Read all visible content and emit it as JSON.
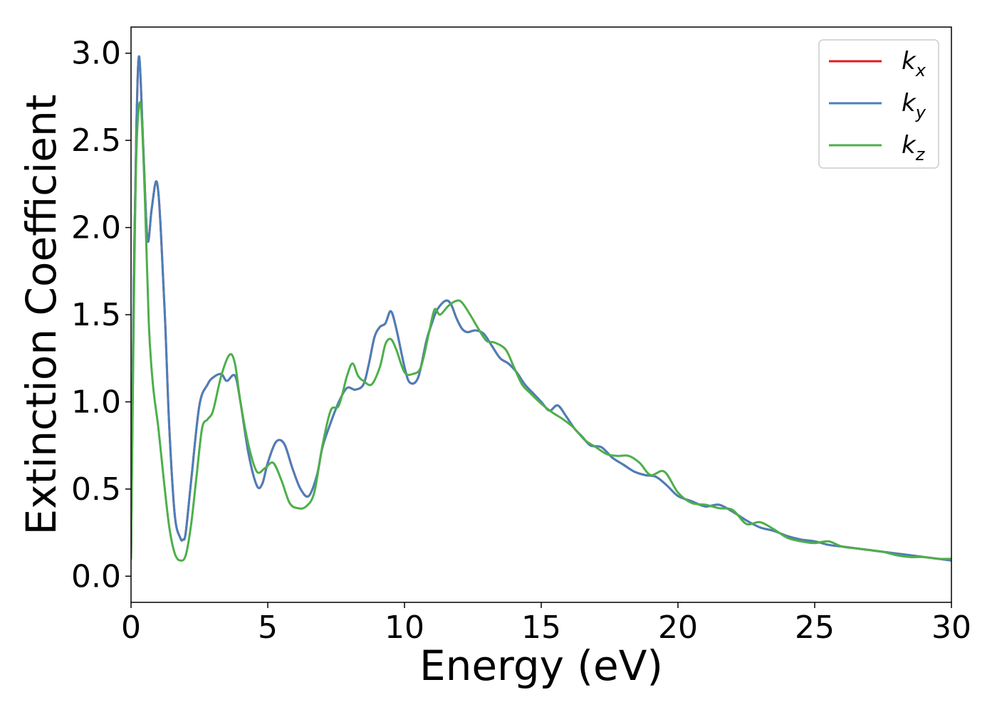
{
  "chart_data": {
    "type": "line",
    "title": "",
    "xlabel": "Energy (eV)",
    "ylabel": "Extinction Coefficient",
    "xlim": [
      0,
      30
    ],
    "ylim": [
      -0.15,
      3.15
    ],
    "xticks": [
      0,
      5,
      10,
      15,
      20,
      25,
      30
    ],
    "xtick_labels": [
      "0",
      "5",
      "10",
      "15",
      "20",
      "25",
      "30"
    ],
    "yticks": [
      0.0,
      0.5,
      1.0,
      1.5,
      2.0,
      2.5,
      3.0
    ],
    "ytick_labels": [
      "0.0",
      "0.5",
      "1.0",
      "1.5",
      "2.0",
      "2.5",
      "3.0"
    ],
    "grid": false,
    "legend_position": "top-right",
    "series": [
      {
        "name": "k_x",
        "label_base": "k",
        "label_sub": "x",
        "color": "#e41a1c",
        "x": [
          0,
          0.1,
          0.2,
          0.3,
          0.45,
          0.6,
          0.75,
          0.9,
          1.0,
          1.1,
          1.25,
          1.4,
          1.6,
          1.8,
          1.9,
          2.0,
          2.2,
          2.5,
          2.8,
          3.0,
          3.3,
          3.5,
          3.8,
          4.0,
          4.3,
          4.6,
          4.8,
          5.0,
          5.3,
          5.6,
          5.9,
          6.2,
          6.5,
          6.8,
          7.0,
          7.3,
          7.6,
          7.9,
          8.2,
          8.5,
          8.7,
          8.9,
          9.1,
          9.3,
          9.5,
          9.7,
          10.0,
          10.2,
          10.5,
          10.8,
          11.0,
          11.2,
          11.5,
          11.7,
          11.9,
          12.1,
          12.3,
          12.6,
          12.9,
          13.2,
          13.5,
          13.8,
          14.1,
          14.4,
          14.7,
          15.0,
          15.3,
          15.6,
          15.9,
          16.2,
          16.5,
          16.8,
          17.2,
          17.6,
          18.0,
          18.4,
          18.8,
          19.2,
          19.6,
          20.0,
          20.5,
          21.0,
          21.5,
          22.0,
          22.5,
          23.0,
          23.5,
          24.0,
          24.5,
          25.0,
          25.5,
          26.0,
          26.5,
          27.0,
          27.5,
          28.0,
          28.5,
          29.0,
          29.5,
          30.0
        ],
        "values": [
          0.1,
          1.7,
          2.6,
          2.98,
          2.45,
          1.93,
          2.1,
          2.26,
          2.2,
          1.95,
          1.45,
          0.85,
          0.35,
          0.22,
          0.21,
          0.25,
          0.55,
          0.98,
          1.1,
          1.14,
          1.16,
          1.12,
          1.15,
          1.0,
          0.7,
          0.52,
          0.53,
          0.65,
          0.77,
          0.76,
          0.62,
          0.5,
          0.46,
          0.58,
          0.74,
          0.88,
          1.0,
          1.08,
          1.07,
          1.1,
          1.22,
          1.37,
          1.43,
          1.45,
          1.52,
          1.42,
          1.2,
          1.11,
          1.14,
          1.35,
          1.45,
          1.53,
          1.58,
          1.56,
          1.48,
          1.42,
          1.4,
          1.41,
          1.39,
          1.32,
          1.25,
          1.22,
          1.17,
          1.1,
          1.05,
          1.0,
          0.95,
          0.98,
          0.92,
          0.85,
          0.8,
          0.75,
          0.74,
          0.68,
          0.64,
          0.6,
          0.58,
          0.57,
          0.52,
          0.46,
          0.43,
          0.4,
          0.41,
          0.37,
          0.32,
          0.28,
          0.26,
          0.23,
          0.21,
          0.2,
          0.18,
          0.17,
          0.16,
          0.15,
          0.14,
          0.13,
          0.12,
          0.11,
          0.1,
          0.09
        ]
      },
      {
        "name": "k_y",
        "label_base": "k",
        "label_sub": "y",
        "color": "#4a7fba",
        "x": [
          0,
          0.1,
          0.2,
          0.3,
          0.45,
          0.6,
          0.75,
          0.9,
          1.0,
          1.1,
          1.25,
          1.4,
          1.6,
          1.8,
          1.9,
          2.0,
          2.2,
          2.5,
          2.8,
          3.0,
          3.3,
          3.5,
          3.8,
          4.0,
          4.3,
          4.6,
          4.8,
          5.0,
          5.3,
          5.6,
          5.9,
          6.2,
          6.5,
          6.8,
          7.0,
          7.3,
          7.6,
          7.9,
          8.2,
          8.5,
          8.7,
          8.9,
          9.1,
          9.3,
          9.5,
          9.7,
          10.0,
          10.2,
          10.5,
          10.8,
          11.0,
          11.2,
          11.5,
          11.7,
          11.9,
          12.1,
          12.3,
          12.6,
          12.9,
          13.2,
          13.5,
          13.8,
          14.1,
          14.4,
          14.7,
          15.0,
          15.3,
          15.6,
          15.9,
          16.2,
          16.5,
          16.8,
          17.2,
          17.6,
          18.0,
          18.4,
          18.8,
          19.2,
          19.6,
          20.0,
          20.5,
          21.0,
          21.5,
          22.0,
          22.5,
          23.0,
          23.5,
          24.0,
          24.5,
          25.0,
          25.5,
          26.0,
          26.5,
          27.0,
          27.5,
          28.0,
          28.5,
          29.0,
          29.5,
          30.0
        ],
        "values": [
          0.1,
          1.7,
          2.6,
          2.98,
          2.45,
          1.93,
          2.1,
          2.26,
          2.2,
          1.95,
          1.45,
          0.85,
          0.35,
          0.22,
          0.21,
          0.25,
          0.55,
          0.98,
          1.1,
          1.14,
          1.16,
          1.12,
          1.15,
          1.0,
          0.7,
          0.52,
          0.53,
          0.65,
          0.77,
          0.76,
          0.62,
          0.5,
          0.46,
          0.58,
          0.74,
          0.88,
          1.0,
          1.08,
          1.07,
          1.1,
          1.22,
          1.37,
          1.43,
          1.45,
          1.52,
          1.42,
          1.2,
          1.11,
          1.14,
          1.35,
          1.45,
          1.53,
          1.58,
          1.56,
          1.48,
          1.42,
          1.4,
          1.41,
          1.39,
          1.32,
          1.25,
          1.22,
          1.17,
          1.1,
          1.05,
          1.0,
          0.95,
          0.98,
          0.92,
          0.85,
          0.8,
          0.75,
          0.74,
          0.68,
          0.64,
          0.6,
          0.58,
          0.57,
          0.52,
          0.46,
          0.43,
          0.4,
          0.41,
          0.37,
          0.32,
          0.28,
          0.26,
          0.23,
          0.21,
          0.2,
          0.18,
          0.17,
          0.16,
          0.15,
          0.14,
          0.13,
          0.12,
          0.11,
          0.1,
          0.09
        ]
      },
      {
        "name": "k_z",
        "label_base": "k",
        "label_sub": "z",
        "color": "#4daf4a",
        "x": [
          0,
          0.1,
          0.2,
          0.35,
          0.5,
          0.65,
          0.8,
          1.0,
          1.2,
          1.4,
          1.6,
          1.8,
          2.0,
          2.2,
          2.4,
          2.6,
          2.8,
          3.0,
          3.3,
          3.6,
          3.8,
          4.0,
          4.3,
          4.6,
          4.9,
          5.2,
          5.5,
          5.8,
          6.1,
          6.4,
          6.7,
          7.0,
          7.3,
          7.6,
          7.9,
          8.1,
          8.3,
          8.5,
          8.8,
          9.1,
          9.3,
          9.5,
          9.7,
          10.0,
          10.3,
          10.6,
          10.9,
          11.1,
          11.3,
          11.6,
          11.9,
          12.1,
          12.4,
          12.7,
          13.0,
          13.3,
          13.7,
          14.0,
          14.3,
          14.6,
          15.0,
          15.4,
          15.8,
          16.2,
          16.6,
          17.0,
          17.4,
          17.8,
          18.2,
          18.6,
          19.0,
          19.5,
          20.0,
          20.5,
          21.0,
          21.5,
          22.0,
          22.5,
          23.0,
          23.5,
          24.0,
          24.5,
          25.0,
          25.5,
          26.0,
          26.5,
          27.0,
          27.5,
          28.0,
          28.5,
          29.0,
          29.5,
          30.0
        ],
        "values": [
          0.1,
          1.5,
          2.45,
          2.71,
          2.2,
          1.45,
          1.1,
          0.85,
          0.55,
          0.28,
          0.13,
          0.09,
          0.12,
          0.3,
          0.58,
          0.85,
          0.9,
          0.95,
          1.15,
          1.27,
          1.22,
          1.0,
          0.75,
          0.6,
          0.62,
          0.65,
          0.55,
          0.42,
          0.39,
          0.4,
          0.48,
          0.75,
          0.95,
          0.98,
          1.15,
          1.22,
          1.15,
          1.12,
          1.1,
          1.2,
          1.33,
          1.36,
          1.3,
          1.17,
          1.16,
          1.2,
          1.4,
          1.53,
          1.5,
          1.55,
          1.58,
          1.57,
          1.5,
          1.42,
          1.35,
          1.34,
          1.3,
          1.2,
          1.1,
          1.05,
          0.99,
          0.94,
          0.9,
          0.85,
          0.78,
          0.74,
          0.7,
          0.69,
          0.69,
          0.65,
          0.58,
          0.6,
          0.48,
          0.42,
          0.41,
          0.39,
          0.38,
          0.3,
          0.31,
          0.27,
          0.22,
          0.2,
          0.19,
          0.2,
          0.17,
          0.16,
          0.15,
          0.14,
          0.12,
          0.11,
          0.11,
          0.1,
          0.1
        ]
      }
    ]
  }
}
